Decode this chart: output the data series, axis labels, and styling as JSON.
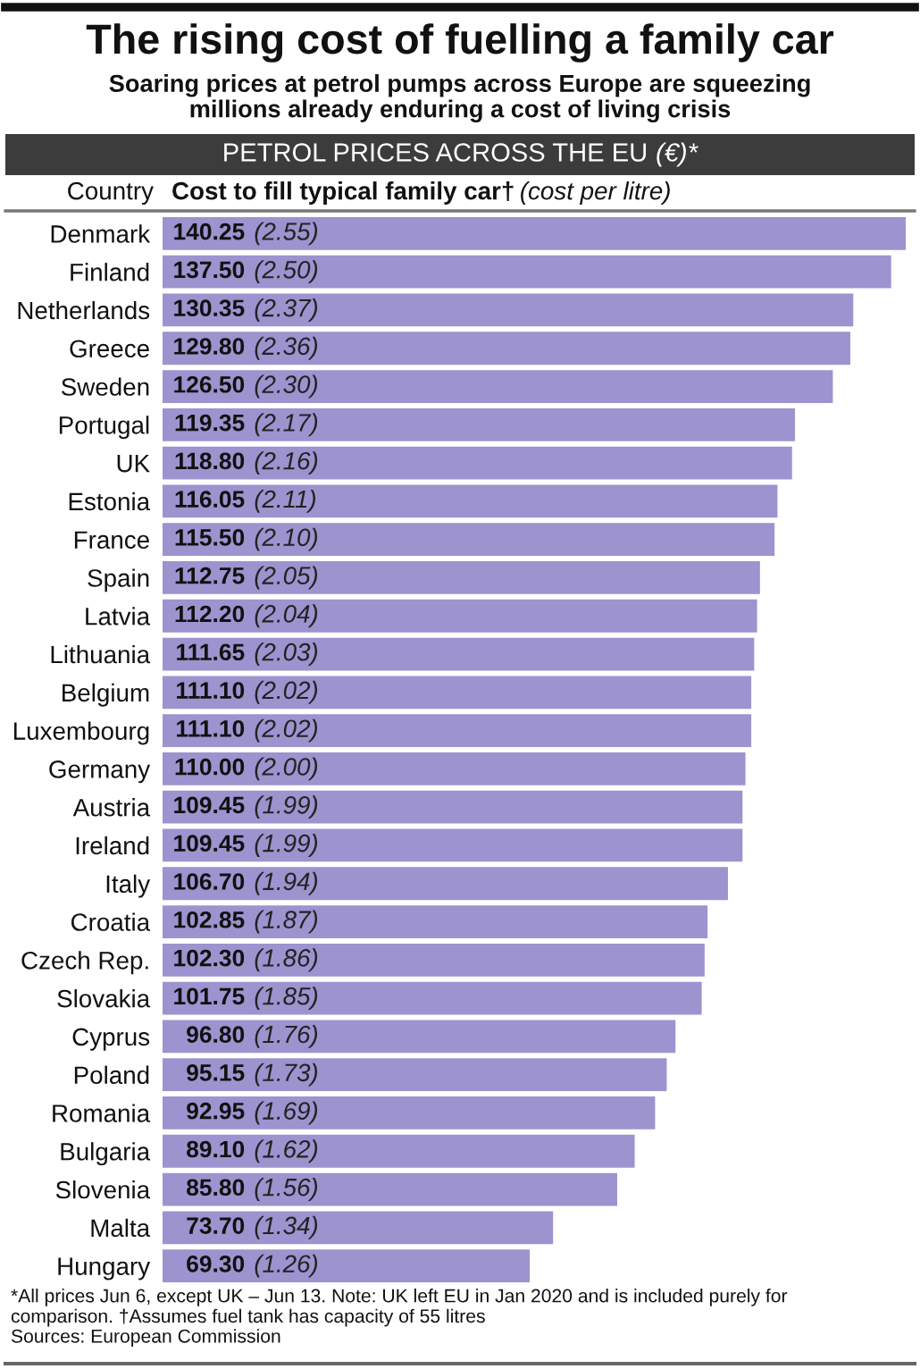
{
  "chart_data": {
    "type": "bar",
    "orientation": "horizontal",
    "title": "The rising cost of fuelling a family car",
    "subtitle": "Soaring prices at petrol pumps across Europe are squeezing millions already enduring a cost of living crisis",
    "ylabel": "Country",
    "xlabel": "Cost to fill typical family car† (cost per litre)",
    "annotations": [
      "PETROL PRICES ACROSS THE EU (€)*",
      "*All prices Jun 6, except UK – Jun 13. Note: UK left EU in Jan 2020 and is included purely for comparison. †Assumes fuel tank has capacity of 55 litres",
      "Sources: European Commission"
    ],
    "categories": [
      "Denmark",
      "Finland",
      "Netherlands",
      "Greece",
      "Sweden",
      "Portugal",
      "UK",
      "Estonia",
      "France",
      "Spain",
      "Latvia",
      "Lithuania",
      "Belgium",
      "Luxembourg",
      "Germany",
      "Austria",
      "Ireland",
      "Italy",
      "Croatia",
      "Czech Rep.",
      "Slovakia",
      "Cyprus",
      "Poland",
      "Romania",
      "Bulgaria",
      "Slovenia",
      "Malta",
      "Hungary"
    ],
    "values": [
      140.25,
      137.5,
      130.35,
      129.8,
      126.5,
      119.35,
      118.8,
      116.05,
      115.5,
      112.75,
      112.2,
      111.65,
      111.1,
      111.1,
      110.0,
      109.45,
      109.45,
      106.7,
      102.85,
      102.3,
      101.75,
      96.8,
      95.15,
      92.95,
      89.1,
      85.8,
      73.7,
      69.3
    ],
    "value_labels": [
      "140.25 (2.55)",
      "137.50 (2.50)",
      "130.35 (2.37)",
      "129.80 (2.36)",
      "126.50 (2.30)",
      "119.35 (2.17)",
      "118.80 (2.16)",
      "116.05 (2.11)",
      "115.50 (2.10)",
      "112.75 (2.05)",
      "112.20 (2.04)",
      "111.65 (2.03)",
      "111.10 (2.02)",
      "111.10 (2.02)",
      "110.00 (2.00)",
      "109.45 (1.99)",
      "109.45 (1.99)",
      "106.70 (1.94)",
      "102.85 (1.87)",
      "102.30 (1.86)",
      "101.75 (1.85)",
      "96.80 (1.76)",
      "95.15 (1.73)",
      "92.95 (1.69)",
      "89.10 (1.62)",
      "85.80 (1.56)",
      "73.70 (1.34)",
      "69.30 (1.26)"
    ],
    "color": "#9c93cf",
    "tick_labels": "y"
  }
}
